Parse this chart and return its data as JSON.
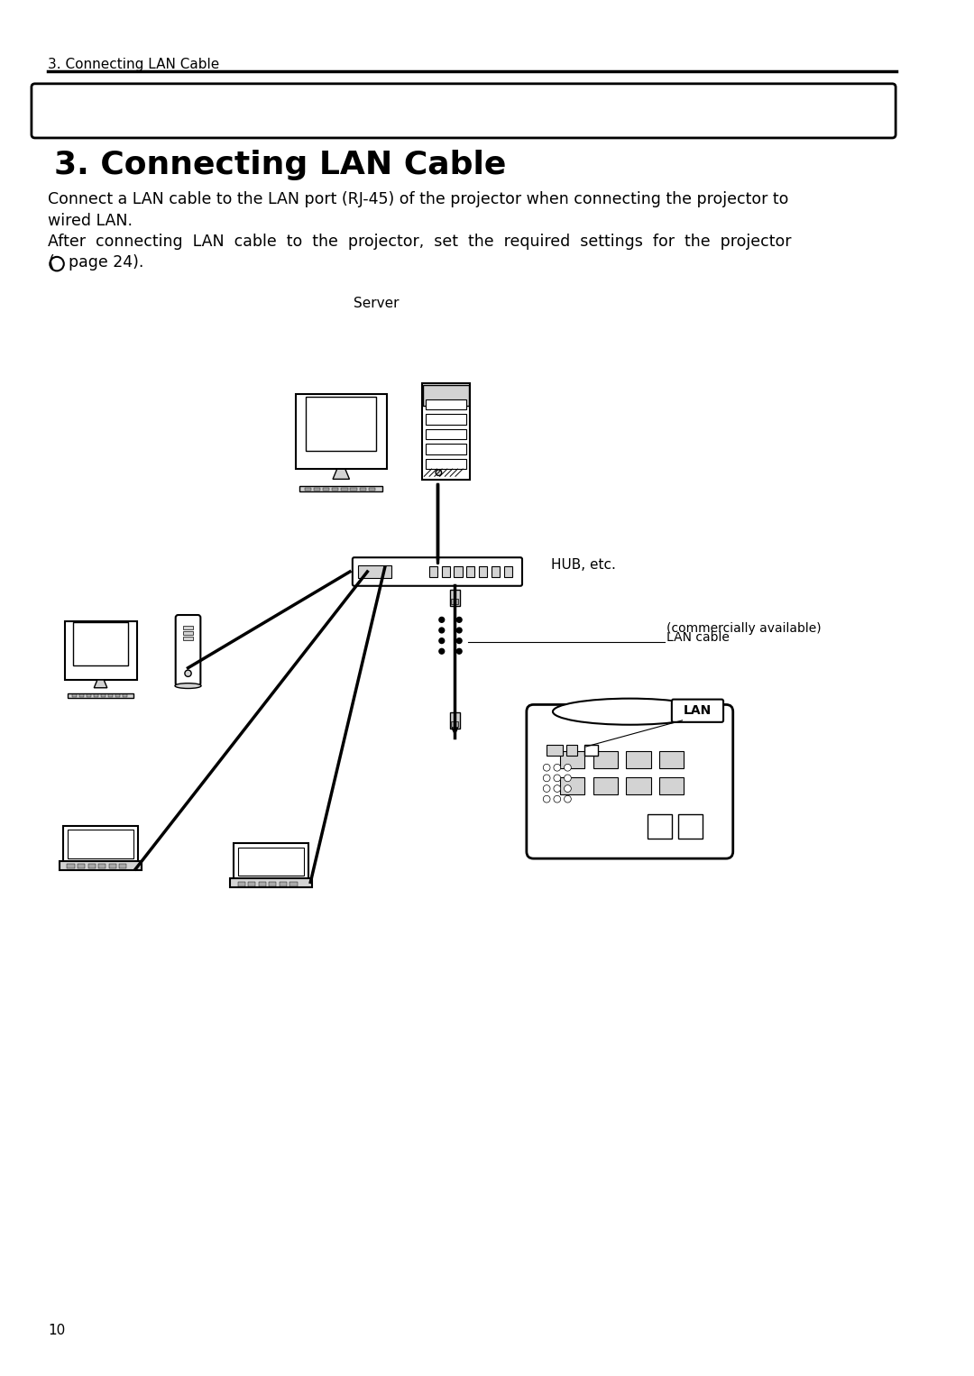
{
  "page_title_small": "3. Connecting LAN Cable",
  "page_title_large": "3. Connecting LAN Cable",
  "body_text_line1": "Connect a LAN cable to the LAN port (RJ-45) of the projector when connecting the projector to",
  "body_text_line2": "wired LAN.",
  "body_text_line3": "After  connecting  LAN  cable  to  the  projector,  set  the  required  settings  for  the  projector",
  "body_text_line4": "(○page 24).",
  "label_server": "Server",
  "label_hub": "HUB, etc.",
  "label_lan_cable": "LAN cable",
  "label_commercially": "(commercially available)",
  "label_lan": "LAN",
  "page_number": "10",
  "bg_color": "#ffffff",
  "text_color": "#000000",
  "line_color": "#000000"
}
